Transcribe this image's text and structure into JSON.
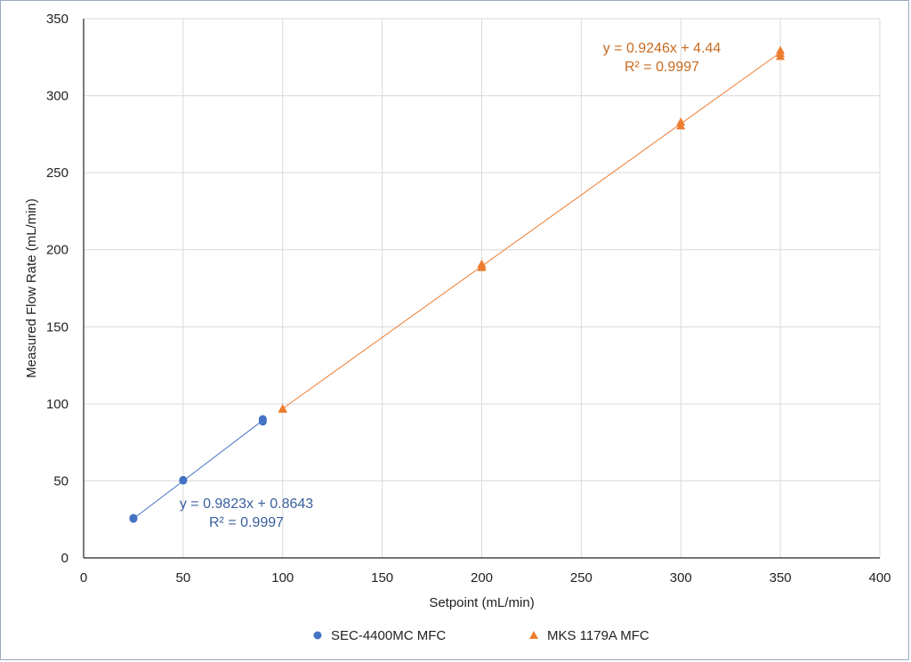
{
  "chart_data": {
    "type": "scatter",
    "xlabel": "Setpoint (mL/min)",
    "ylabel": "Measured Flow Rate (mL/min)",
    "xlim": [
      0,
      400
    ],
    "ylim": [
      0,
      350
    ],
    "xticks": [
      0,
      50,
      100,
      150,
      200,
      250,
      300,
      350,
      400
    ],
    "yticks": [
      0,
      50,
      100,
      150,
      200,
      250,
      300,
      350
    ],
    "grid": true,
    "legend_position": "bottom",
    "series": [
      {
        "name": "SEC-4400MC MFC",
        "marker": "circle",
        "color": "#4472c4",
        "points": [
          [
            25,
            25.4
          ],
          [
            25,
            25.9
          ],
          [
            50,
            50.2
          ],
          [
            50,
            50.6
          ],
          [
            90,
            88.5
          ],
          [
            90,
            89.3
          ],
          [
            90,
            90.1
          ]
        ],
        "trendline": {
          "slope": 0.9823,
          "intercept": 0.8643,
          "x_range": [
            25,
            90
          ],
          "equation": "y = 0.9823x + 0.8643",
          "r_squared": "R² = 0.9997"
        }
      },
      {
        "name": "MKS 1179A MFC",
        "marker": "triangle",
        "color": "#ed7d31",
        "points": [
          [
            100,
            96.5
          ],
          [
            100,
            97.0
          ],
          [
            200,
            188.5
          ],
          [
            200,
            189.5
          ],
          [
            200,
            190.8
          ],
          [
            300,
            280.5
          ],
          [
            300,
            283.0
          ],
          [
            350,
            325.5
          ],
          [
            350,
            327.5
          ],
          [
            350,
            329.5
          ]
        ],
        "trendline": {
          "slope": 0.9246,
          "intercept": 4.44,
          "x_range": [
            100,
            350
          ],
          "equation": "y = 0.9246x + 4.44",
          "r_squared": "R² = 0.9997"
        }
      }
    ]
  }
}
